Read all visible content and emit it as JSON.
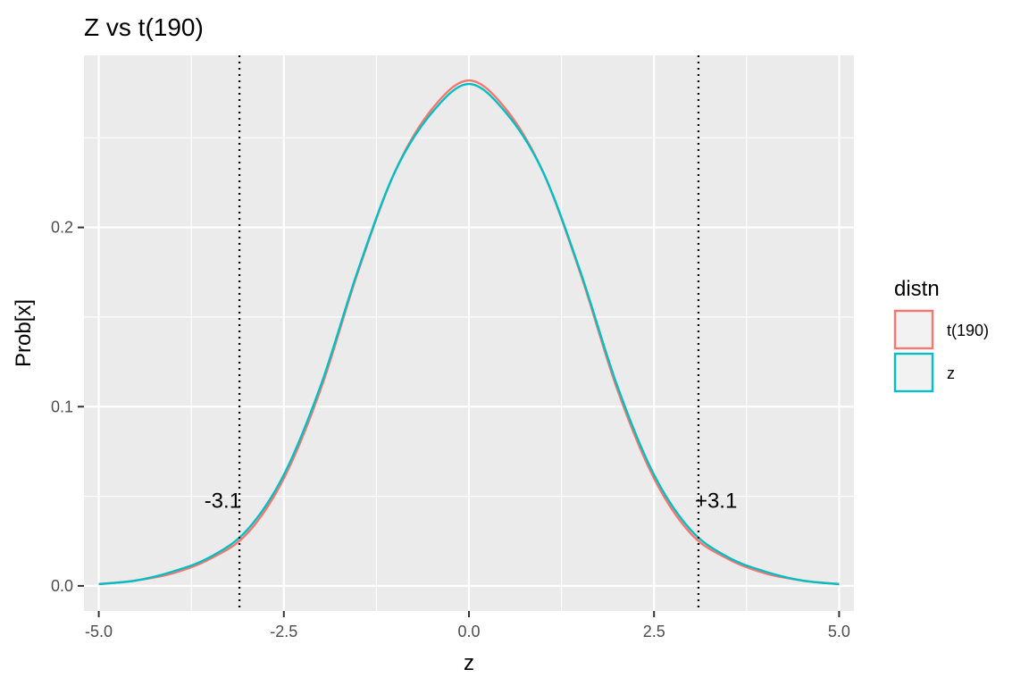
{
  "chart_data": {
    "type": "line",
    "title": "Z vs t(190)",
    "xlabel": "z",
    "ylabel": "Prob[x]",
    "xlim": [
      -5.2,
      5.2
    ],
    "ylim": [
      -0.014,
      0.296
    ],
    "x_ticks": [
      {
        "value": -5.0,
        "label": "-5.0"
      },
      {
        "value": -2.5,
        "label": "-2.5"
      },
      {
        "value": 0.0,
        "label": "0.0"
      },
      {
        "value": 2.5,
        "label": "2.5"
      },
      {
        "value": 5.0,
        "label": "5.0"
      }
    ],
    "y_ticks": [
      {
        "value": 0.0,
        "label": "0.0"
      },
      {
        "value": 0.1,
        "label": "0.1"
      },
      {
        "value": 0.2,
        "label": "0.2"
      }
    ],
    "grid": true,
    "legend": {
      "title": "distn",
      "position": "right",
      "entries": [
        {
          "label": "t(190)",
          "color": "#F8766D"
        },
        {
          "label": "z",
          "color": "#00BFC4"
        }
      ]
    },
    "series": [
      {
        "name": "t(190)",
        "color": "#F8766D",
        "x": [
          -5.0,
          -4.5,
          -4.0,
          -3.5,
          -3.0,
          -2.5,
          -2.0,
          -1.5,
          -1.0,
          -0.5,
          0.0,
          0.5,
          1.0,
          1.5,
          2.0,
          2.5,
          3.0,
          3.5,
          4.0,
          4.5,
          5.0
        ],
        "y": [
          0.001,
          0.003,
          0.007,
          0.015,
          0.029,
          0.06,
          0.11,
          0.175,
          0.231,
          0.266,
          0.282,
          0.266,
          0.231,
          0.175,
          0.11,
          0.06,
          0.029,
          0.015,
          0.007,
          0.003,
          0.001
        ]
      },
      {
        "name": "z",
        "color": "#00BFC4",
        "x": [
          -5.0,
          -4.5,
          -4.0,
          -3.5,
          -3.0,
          -2.5,
          -2.0,
          -1.5,
          -1.0,
          -0.5,
          0.0,
          0.5,
          1.0,
          1.5,
          2.0,
          2.5,
          3.0,
          3.5,
          4.0,
          4.5,
          5.0
        ],
        "y": [
          0.001,
          0.003,
          0.008,
          0.016,
          0.031,
          0.062,
          0.112,
          0.176,
          0.231,
          0.264,
          0.28,
          0.264,
          0.231,
          0.176,
          0.112,
          0.062,
          0.031,
          0.016,
          0.008,
          0.003,
          0.001
        ]
      }
    ],
    "vlines": [
      {
        "x": -3.1,
        "style": "dotted",
        "label": "-3.1"
      },
      {
        "x": 3.1,
        "style": "dotted",
        "label": "+3.1"
      }
    ],
    "annotations": [
      {
        "x": -3.1,
        "y": 0.048,
        "text": "-3.1",
        "anchor": "end"
      },
      {
        "x": 3.1,
        "y": 0.048,
        "text": "+3.1",
        "anchor": "start"
      }
    ]
  }
}
